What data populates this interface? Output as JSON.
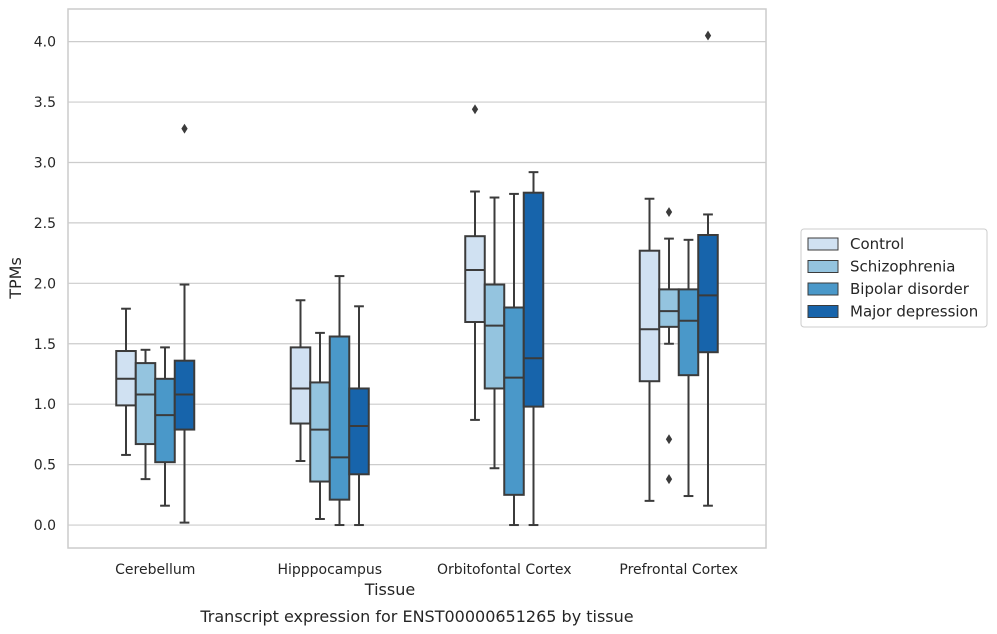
{
  "caption": "Transcript expression for ENST00000651265 by tissue",
  "chart_data": {
    "type": "box",
    "xlabel": "Tissue",
    "ylabel": "TPMs",
    "ylim": [
      -0.19,
      4.27
    ],
    "yticks": [
      0.0,
      0.5,
      1.0,
      1.5,
      2.0,
      2.5,
      3.0,
      3.5,
      4.0
    ],
    "ytick_labels": [
      "0.0",
      "0.5",
      "1.0",
      "1.5",
      "2.0",
      "2.5",
      "3.0",
      "3.5",
      "4.0"
    ],
    "grid": true,
    "legend_position": "right",
    "categories": [
      "Cerebellum",
      "Hipppocampus",
      "Orbitofontal Cortex",
      "Prefrontal Cortex"
    ],
    "series": [
      {
        "name": "Control",
        "color": "#d0e1f2",
        "boxes": [
          {
            "whislo": 0.58,
            "q1": 0.99,
            "med": 1.21,
            "q3": 1.44,
            "whishi": 1.79,
            "fliers": []
          },
          {
            "whislo": 0.53,
            "q1": 0.84,
            "med": 1.13,
            "q3": 1.47,
            "whishi": 1.86,
            "fliers": []
          },
          {
            "whislo": 0.87,
            "q1": 1.68,
            "med": 2.11,
            "q3": 2.39,
            "whishi": 2.76,
            "fliers": [
              3.44
            ]
          },
          {
            "whislo": 0.2,
            "q1": 1.19,
            "med": 1.62,
            "q3": 2.27,
            "whishi": 2.7,
            "fliers": []
          }
        ]
      },
      {
        "name": "Schizophrenia",
        "color": "#94c4df",
        "boxes": [
          {
            "whislo": 0.38,
            "q1": 0.67,
            "med": 1.08,
            "q3": 1.34,
            "whishi": 1.45,
            "fliers": []
          },
          {
            "whislo": 0.05,
            "q1": 0.36,
            "med": 0.79,
            "q3": 1.18,
            "whishi": 1.59,
            "fliers": []
          },
          {
            "whislo": 0.47,
            "q1": 1.13,
            "med": 1.65,
            "q3": 1.99,
            "whishi": 2.71,
            "fliers": []
          },
          {
            "whislo": 1.5,
            "q1": 1.64,
            "med": 1.77,
            "q3": 1.95,
            "whishi": 2.37,
            "fliers": [
              2.59,
              0.71,
              0.38
            ]
          }
        ]
      },
      {
        "name": "Bipolar disorder",
        "color": "#4a98c9",
        "boxes": [
          {
            "whislo": 0.16,
            "q1": 0.52,
            "med": 0.91,
            "q3": 1.21,
            "whishi": 1.47,
            "fliers": []
          },
          {
            "whislo": 0.0,
            "q1": 0.21,
            "med": 0.56,
            "q3": 1.56,
            "whishi": 2.06,
            "fliers": []
          },
          {
            "whislo": 0.0,
            "q1": 0.25,
            "med": 1.22,
            "q3": 1.8,
            "whishi": 2.74,
            "fliers": []
          },
          {
            "whislo": 0.24,
            "q1": 1.24,
            "med": 1.69,
            "q3": 1.95,
            "whishi": 2.36,
            "fliers": []
          }
        ]
      },
      {
        "name": "Major depression",
        "color": "#1764ab",
        "boxes": [
          {
            "whislo": 0.02,
            "q1": 0.79,
            "med": 1.08,
            "q3": 1.36,
            "whishi": 1.99,
            "fliers": [
              3.28
            ]
          },
          {
            "whislo": 0.0,
            "q1": 0.42,
            "med": 0.82,
            "q3": 1.13,
            "whishi": 1.81,
            "fliers": []
          },
          {
            "whislo": 0.0,
            "q1": 0.98,
            "med": 1.38,
            "q3": 2.75,
            "whishi": 2.92,
            "fliers": []
          },
          {
            "whislo": 0.16,
            "q1": 1.43,
            "med": 1.9,
            "q3": 2.4,
            "whishi": 2.57,
            "fliers": [
              4.05
            ]
          }
        ]
      }
    ]
  }
}
